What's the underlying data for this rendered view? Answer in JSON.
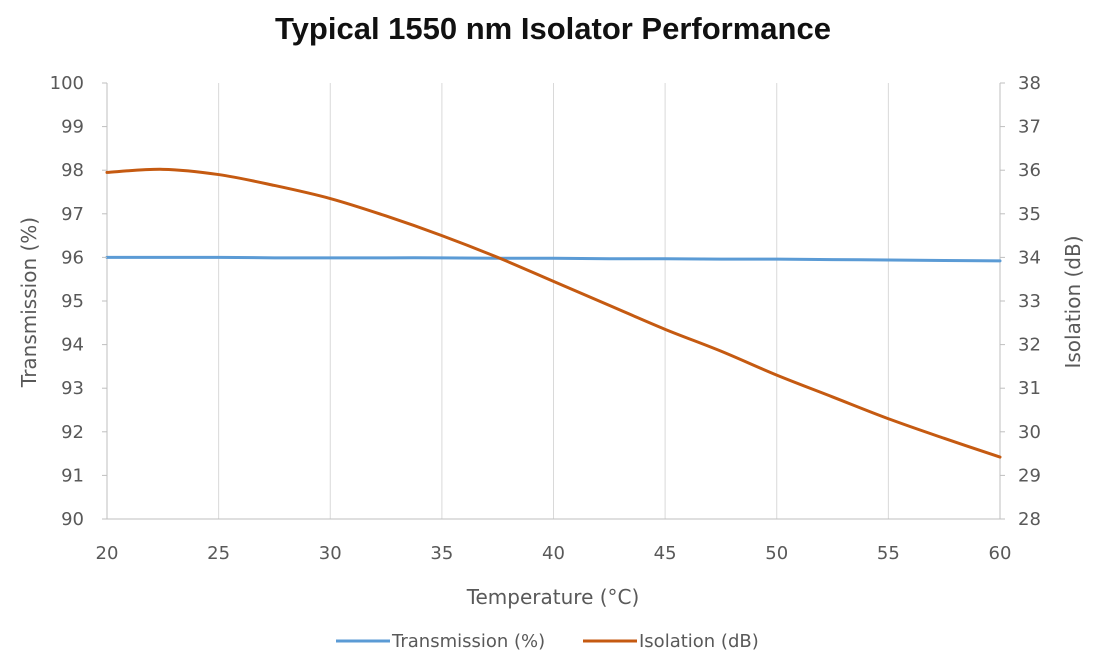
{
  "chart_data": {
    "type": "line",
    "title": "Typical 1550 nm Isolator Performance",
    "xlabel": "Temperature (°C)",
    "ylabel_left": "Transmission (%)",
    "ylabel_right": "Isolation (dB)",
    "x": [
      20,
      22.5,
      25,
      27.5,
      30,
      32.5,
      35,
      37.5,
      40,
      42.5,
      45,
      47.5,
      50,
      52.5,
      55,
      57.5,
      60
    ],
    "xlim": [
      20,
      60
    ],
    "x_ticks": [
      20,
      25,
      30,
      35,
      40,
      45,
      50,
      55,
      60
    ],
    "ylim_left": [
      90,
      100
    ],
    "y_ticks_left": [
      90,
      91,
      92,
      93,
      94,
      95,
      96,
      97,
      98,
      99,
      100
    ],
    "ylim_right": [
      28,
      38
    ],
    "y_ticks_right": [
      28,
      29,
      30,
      31,
      32,
      33,
      34,
      35,
      36,
      37,
      38
    ],
    "grid": "vertical",
    "legend_position": "bottom",
    "series": [
      {
        "name": "Transmission (%)",
        "axis": "left",
        "color": "#5b9bd5",
        "values": [
          96.0,
          96.0,
          96.0,
          95.99,
          95.99,
          95.99,
          95.99,
          95.98,
          95.98,
          95.97,
          95.97,
          95.96,
          95.96,
          95.95,
          95.94,
          95.93,
          95.92
        ]
      },
      {
        "name": "Isolation (dB)",
        "axis": "right",
        "color": "#c55a11",
        "values": [
          35.95,
          36.02,
          35.9,
          35.65,
          35.35,
          34.95,
          34.5,
          34.0,
          33.45,
          32.9,
          32.35,
          31.85,
          31.3,
          30.8,
          30.3,
          29.85,
          29.42
        ]
      }
    ]
  }
}
